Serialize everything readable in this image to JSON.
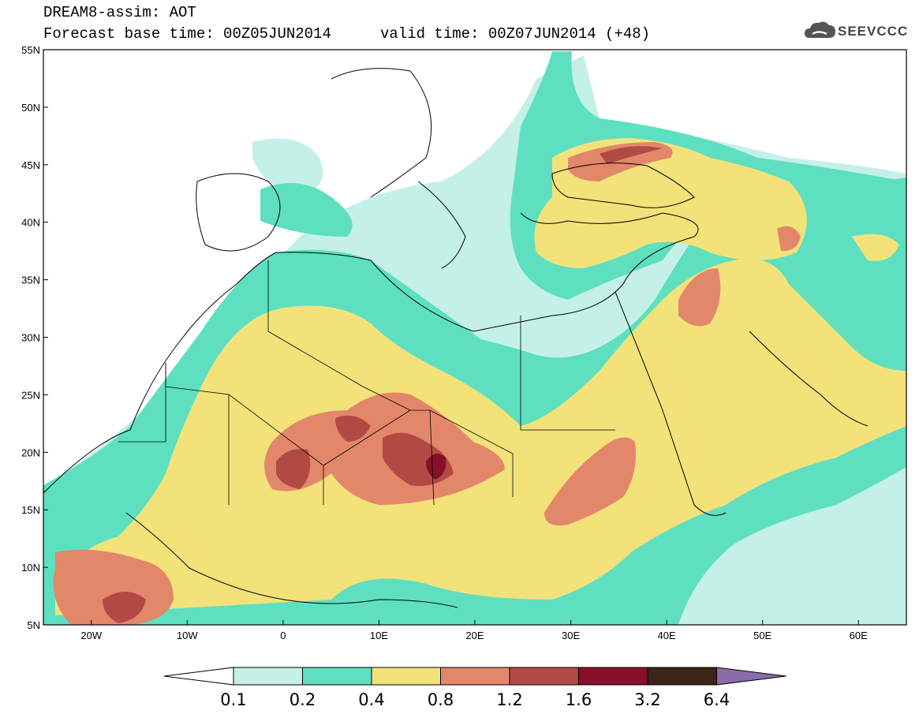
{
  "title": {
    "line1": "DREAM8-assim: AOT",
    "line2": "Forecast base time: 00Z05JUN2014",
    "valid": "valid time: 00Z07JUN2014 (+48)"
  },
  "logo": {
    "text": "SEEVCCC",
    "icon": "cloud-icon"
  },
  "map": {
    "projection": "lat-lon",
    "lon_range": [
      -25,
      65
    ],
    "lat_range": [
      5,
      55
    ],
    "lat_labels": [
      "55N",
      "50N",
      "45N",
      "40N",
      "35N",
      "30N",
      "25N",
      "20N",
      "15N",
      "10N",
      "5N"
    ],
    "lon_labels": [
      "20W",
      "10W",
      "0",
      "10E",
      "20E",
      "30E",
      "40E",
      "50E",
      "60E"
    ],
    "variable": "Aerosol Optical Thickness",
    "colors": {
      "0.1-0.2": "#c4f0e8",
      "0.2-0.4": "#5ee0c0",
      "0.4-0.8": "#f3e27a",
      "0.8-1.2": "#e3876a",
      "1.2-1.6": "#b14a45",
      "1.6-3.2": "#870f2a",
      "3.2-6.4": "#3d2418",
      ">6.4": "#8a6cab"
    }
  },
  "colorbar": {
    "labels": [
      "0.1",
      "0.2",
      "0.4",
      "0.8",
      "1.2",
      "1.6",
      "3.2",
      "6.4"
    ],
    "colors": [
      "#c4f0e8",
      "#5ee0c0",
      "#f3e27a",
      "#e3876a",
      "#b14a45",
      "#870f2a",
      "#3d2418"
    ],
    "under_color": "#ffffff",
    "over_color": "#8a6cab"
  }
}
